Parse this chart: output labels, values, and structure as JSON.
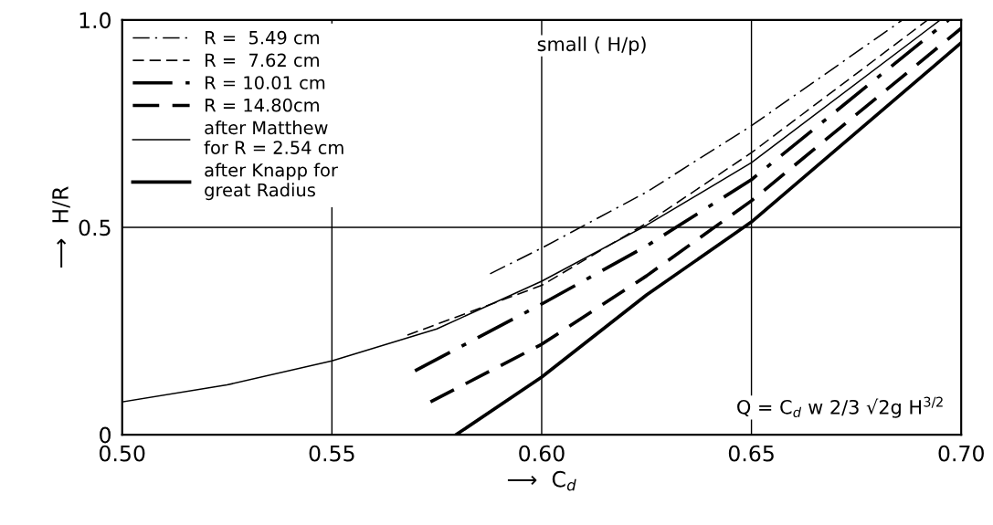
{
  "chart_data": {
    "type": "line",
    "xlabel": "⟶  C$_{d}$",
    "ylabel": "⟶  H/R",
    "xlim": [
      0.5,
      0.7
    ],
    "ylim": [
      0,
      1.0
    ],
    "xticks": [
      {
        "value": 0.5,
        "label": "0.50"
      },
      {
        "value": 0.55,
        "label": "0.55"
      },
      {
        "value": 0.6,
        "label": "0.60"
      },
      {
        "value": 0.65,
        "label": "0.65"
      },
      {
        "value": 0.7,
        "label": "0.70"
      }
    ],
    "yticks": [
      0,
      0.5,
      {
        "value": 1.0,
        "label": "1.0"
      }
    ],
    "grid": true,
    "legend": "top left",
    "series": [
      {
        "name": "R =  5.49 cm",
        "color": "#000000",
        "line_style": "dashdot",
        "x": [
          0.5877,
          0.6,
          0.625,
          0.65,
          0.686
        ],
        "values": [
          0.388,
          0.45,
          0.585,
          0.745,
          1.0
        ]
      },
      {
        "name": "R =  7.62 cm",
        "color": "#000000",
        "line_style": "dashed",
        "x": [
          0.568,
          0.6,
          0.625,
          0.65,
          0.692
        ],
        "values": [
          0.24,
          0.36,
          0.51,
          0.68,
          1.0
        ]
      },
      {
        "name": "R = 10.01 cm",
        "color": "#000000",
        "line_style": "dashdot",
        "x": [
          0.5698,
          0.6,
          0.625,
          0.65,
          0.697
        ],
        "values": [
          0.154,
          0.315,
          0.455,
          0.615,
          1.0
        ]
      },
      {
        "name": "R = 14.80cm",
        "color": "#000000",
        "line_style": "dashed",
        "x": [
          0.5735,
          0.6,
          0.625,
          0.65,
          0.7
        ],
        "values": [
          0.079,
          0.218,
          0.383,
          0.564,
          0.98
        ]
      },
      {
        "name": "after Matthew for R = 2.54 cm",
        "color": "#000000",
        "line_style": "solid",
        "x": [
          0.5,
          0.525,
          0.55,
          0.575,
          0.6,
          0.625,
          0.65,
          0.695
        ],
        "values": [
          0.079,
          0.12,
          0.178,
          0.255,
          0.37,
          0.505,
          0.656,
          1.0
        ]
      },
      {
        "name": "after Knapp for great Radius",
        "color": "#000000",
        "line_style": "solid",
        "x": [
          0.5796,
          0.6,
          0.625,
          0.65,
          0.7
        ],
        "values": [
          0.0,
          0.139,
          0.337,
          0.513,
          0.945
        ]
      }
    ],
    "annotations": [
      "small ( H/p)",
      "Q = C$_{d}$ w 2/3 √2g H$^{3/2}$"
    ]
  }
}
